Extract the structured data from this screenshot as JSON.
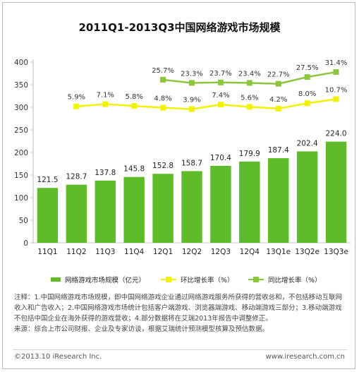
{
  "title": "2011Q1-2013Q3中国网络游戏市场规模",
  "legend": {
    "bar": "网络游戏市场规模（亿元）",
    "qoq": "环比增长率（%）",
    "yoy": "同比增长率（%）"
  },
  "notes": [
    "注释：1.中国网络游戏市场规模，即中国网络游戏企业通过网络游戏服务所获得的营收总和，不包括移动互联网收入和广告收入；2.中国网络游戏市场统计包括客户端游戏、浏览器端游戏、移动端游戏三部分；3.移动端游戏不包括中国企业在海外获得的游戏营收；4.部分数据将在艾瑞2013年报告中调整修正。",
    "来源：综合上市公司财报、企业及专家访谈，根据艾瑞统计预测模型核算及预估数据。"
  ],
  "footer": {
    "copyright": "©2013.10 iResearch Inc.",
    "website": "www.iresearch.com.cn"
  },
  "colors": {
    "bar": "#5fbb2a",
    "qoq": "#f2f200",
    "yoy": "#8cc63f",
    "axis": "#bfbfbf"
  },
  "chart_data": {
    "type": "bar",
    "title": "2011Q1-2013Q3中国网络游戏市场规模",
    "categories": [
      "11Q1",
      "11Q2",
      "11Q3",
      "11Q4",
      "12Q1",
      "12Q2",
      "12Q3",
      "12Q4",
      "13Q1e",
      "13Q2e",
      "13Q3e"
    ],
    "ylim": [
      0,
      400
    ],
    "yticks": [
      0,
      50,
      100,
      150,
      200,
      250,
      300,
      350,
      400
    ],
    "grid": false,
    "legend_position": "bottom",
    "series": [
      {
        "name": "网络游戏市场规模（亿元）",
        "type": "bar",
        "values": [
          121.5,
          128.7,
          137.8,
          145.8,
          152.8,
          158.7,
          170.4,
          179.9,
          187.4,
          202.4,
          224.0
        ],
        "labels": [
          "121.5",
          "128.7",
          "137.8",
          "145.8",
          "152.8",
          "158.7",
          "170.4",
          "179.9",
          "187.4",
          "202.4",
          "224.0"
        ]
      },
      {
        "name": "环比增长率（%）",
        "type": "line",
        "values": [
          null,
          5.9,
          7.1,
          5.8,
          4.8,
          3.9,
          7.4,
          5.6,
          4.2,
          8.0,
          10.7
        ],
        "labels": [
          null,
          "5.9%",
          "7.1%",
          "5.8%",
          "4.8%",
          "3.9%",
          "7.4%",
          "5.6%",
          "4.2%",
          "8.0%",
          "10.7%"
        ],
        "plot_y": [
          null,
          302,
          307,
          303,
          299,
          296,
          306,
          301,
          297,
          309,
          318
        ]
      },
      {
        "name": "同比增长率（%）",
        "type": "line",
        "values": [
          null,
          null,
          null,
          null,
          25.7,
          23.3,
          23.7,
          23.4,
          22.7,
          27.5,
          31.4
        ],
        "labels": [
          null,
          null,
          null,
          null,
          "25.7%",
          "23.3%",
          "23.7%",
          "23.4%",
          "22.7%",
          "27.5%",
          "31.4%"
        ],
        "plot_y": [
          null,
          null,
          null,
          null,
          361,
          354,
          355,
          354,
          352,
          367,
          378
        ]
      }
    ]
  }
}
